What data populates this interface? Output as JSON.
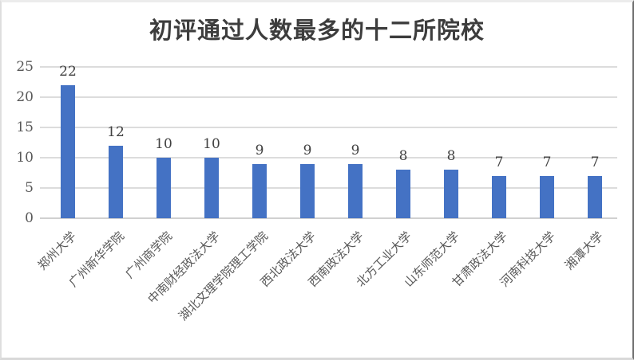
{
  "chart_data": {
    "type": "bar",
    "title": "初评通过人数最多的十二所院校",
    "categories": [
      "郑州大学",
      "广州新华学院",
      "广州商学院",
      "中南财经政法大学",
      "湖北文理学院理工学院",
      "西北政法大学",
      "西南政法大学",
      "北方工业大学",
      "山东师范大学",
      "甘肃政法大学",
      "河南科技大学",
      "湘潭大学"
    ],
    "values": [
      22,
      12,
      10,
      10,
      9,
      9,
      9,
      8,
      8,
      7,
      7,
      7
    ],
    "xlabel": "",
    "ylabel": "",
    "ylim": [
      0,
      25
    ],
    "yticks": [
      0,
      5,
      10,
      15,
      20,
      25
    ],
    "grid": "horizontal",
    "legend": "none",
    "data_labels": true,
    "category_label_rotation_deg": 45,
    "colors": {
      "bar": "#4472C4",
      "gridline": "#DCDCDC",
      "axis_line": "#D0D0D0",
      "title_text": "#3D3D3D",
      "value_label_text": "#404040",
      "axis_tick_text": "#595959"
    }
  }
}
